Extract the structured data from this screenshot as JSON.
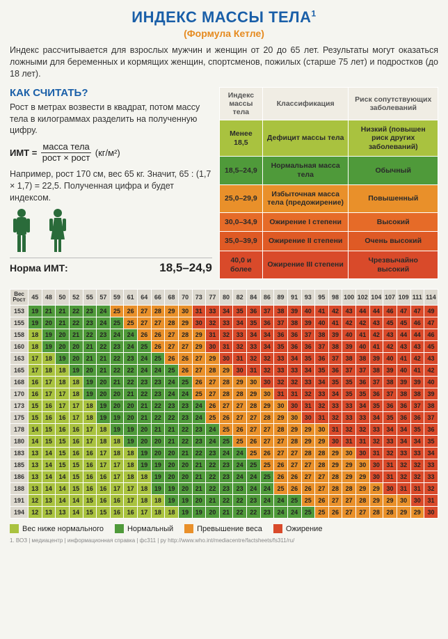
{
  "title": "ИНДЕКС МАССЫ ТЕЛА",
  "title_sup": "1",
  "subtitle": "(Формула Кетле)",
  "intro": "Индекс рассчитывается для взрослых мужчин и женщин от 20 до 65 лет. Результаты могут оказаться ложными для беременных и кормящих женщин, спортсменов, пожилых (старше 75 лет) и подростков (до 18 лет).",
  "howto_heading": "КАК СЧИТАТЬ?",
  "howto_p1": "Рост в метрах возвести в квадрат, потом массу тела в килограммах разделить на полученную цифру.",
  "formula_label": "ИМТ =",
  "formula_top": "масса тела",
  "formula_bot": "рост × рост",
  "formula_unit": "(кг/м²)",
  "howto_p2": "Например, рост 170 см, вес 65 кг. Значит, 65 : (1,7 × 1,7) = 22,5. Полученная цифра и будет индексом.",
  "norm_label": "Норма ИМТ:",
  "norm_value": "18,5–24,9",
  "colors": {
    "low": "#a9c23f",
    "normal": "#4f9a3a",
    "over": "#e9902a",
    "obese": "#d94a2a",
    "header_bg": "#ddd9cf"
  },
  "class_table": {
    "headers": [
      "Индекс массы тела",
      "Классификация",
      "Риск сопутствующих заболеваний"
    ],
    "rows": [
      {
        "bg": "#a9c23f",
        "cells": [
          "Менее 18,5",
          "Дефицит массы тела",
          "Низкий (повышен риск других заболеваний)"
        ]
      },
      {
        "bg": "#4f9a3a",
        "cells": [
          "18,5–24,9",
          "Нормальная масса тела",
          "Обычный"
        ]
      },
      {
        "bg": "#e9902a",
        "cells": [
          "25,0–29,9",
          "Избыточная масса тела (предожирение)",
          "Повышенный"
        ]
      },
      {
        "bg": "#e66b28",
        "cells": [
          "30,0–34,9",
          "Ожирение I степени",
          "Высокий"
        ]
      },
      {
        "bg": "#df5a25",
        "cells": [
          "35,0–39,9",
          "Ожирение II степени",
          "Очень высокий"
        ]
      },
      {
        "bg": "#d94a2a",
        "cells": [
          "40,0 и более",
          "Ожирение III степени",
          "Чрезвычайно высокий"
        ]
      }
    ]
  },
  "bmi_chart": {
    "corner_top": "Вес",
    "corner_bot": "Рост",
    "weights": [
      45,
      48,
      50,
      52,
      55,
      57,
      59,
      61,
      64,
      66,
      68,
      70,
      73,
      77,
      80,
      82,
      84,
      86,
      89,
      91,
      93,
      95,
      98,
      100,
      102,
      104,
      107,
      109,
      111,
      114
    ],
    "heights": [
      153,
      155,
      158,
      160,
      163,
      165,
      168,
      170,
      173,
      175,
      178,
      180,
      183,
      185,
      186,
      188,
      191,
      194
    ],
    "thresholds": {
      "under": 18.5,
      "normal": 25,
      "over": 30
    }
  },
  "legend": [
    {
      "color": "#a9c23f",
      "label": "Вес ниже нормального"
    },
    {
      "color": "#4f9a3a",
      "label": "Нормальный"
    },
    {
      "color": "#e9902a",
      "label": "Превышение веса"
    },
    {
      "color": "#d94a2a",
      "label": "Ожирение"
    }
  ],
  "footnote": "1. ВОЗ | медиацентр | информационная справка | фс311 | ру  http://www.who.int/mediacentre/factsheets/fs311/ru/"
}
